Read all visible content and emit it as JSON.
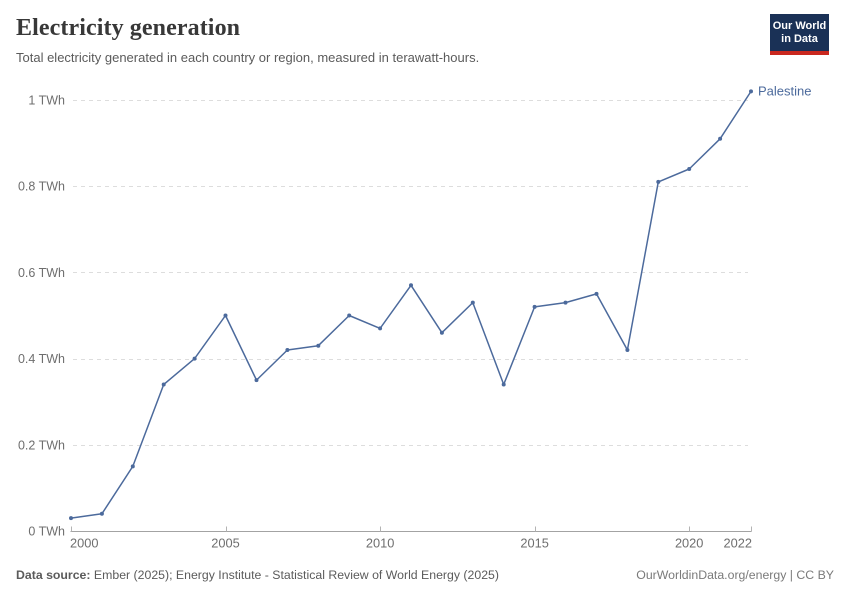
{
  "header": {
    "title": "Electricity generation",
    "subtitle": "Total electricity generated in each country or region, measured in terawatt-hours.",
    "logo": {
      "line1": "Our World",
      "line2": "in Data"
    }
  },
  "chart_data": {
    "type": "line",
    "title": "Electricity generation",
    "xlabel": "",
    "ylabel": "TWh",
    "xlim": [
      2000,
      2022
    ],
    "ylim": [
      0,
      1.05
    ],
    "grid": "horizontal-dashed",
    "legend_position": "end-of-line-label",
    "x": [
      2000,
      2001,
      2002,
      2003,
      2004,
      2005,
      2006,
      2007,
      2008,
      2009,
      2010,
      2011,
      2012,
      2013,
      2014,
      2015,
      2016,
      2017,
      2018,
      2019,
      2020,
      2021,
      2022
    ],
    "series": [
      {
        "name": "Palestine",
        "color": "#4c6a9c",
        "values": [
          0.03,
          0.04,
          0.15,
          0.34,
          0.4,
          0.5,
          0.35,
          0.42,
          0.43,
          0.5,
          0.47,
          0.57,
          0.46,
          0.53,
          0.34,
          0.52,
          0.53,
          0.55,
          0.42,
          0.81,
          0.84,
          0.91,
          1.02
        ]
      }
    ],
    "x_ticks": [
      2000,
      2005,
      2010,
      2015,
      2020,
      2022
    ],
    "y_ticks": [
      {
        "value": 0,
        "label": "0 TWh"
      },
      {
        "value": 0.2,
        "label": "0.2 TWh"
      },
      {
        "value": 0.4,
        "label": "0.4 TWh"
      },
      {
        "value": 0.6,
        "label": "0.6 TWh"
      },
      {
        "value": 0.8,
        "label": "0.8 TWh"
      },
      {
        "value": 1,
        "label": "1 TWh"
      }
    ]
  },
  "footer": {
    "datasource_label": "Data source:",
    "datasource_text": " Ember (2025); Energy Institute - Statistical Review of World Energy (2025)",
    "credit": "OurWorldinData.org/energy | CC BY"
  },
  "colors": {
    "line": "#4c6a9c",
    "entity_label": "#4c6a9c",
    "logo_bg": "#1a3156",
    "logo_accent": "#c9281f",
    "grid": "#dddddd",
    "axis": "#a3a3a3",
    "tick": "#b3b3b3",
    "axis_text": "#6e6e6e"
  }
}
